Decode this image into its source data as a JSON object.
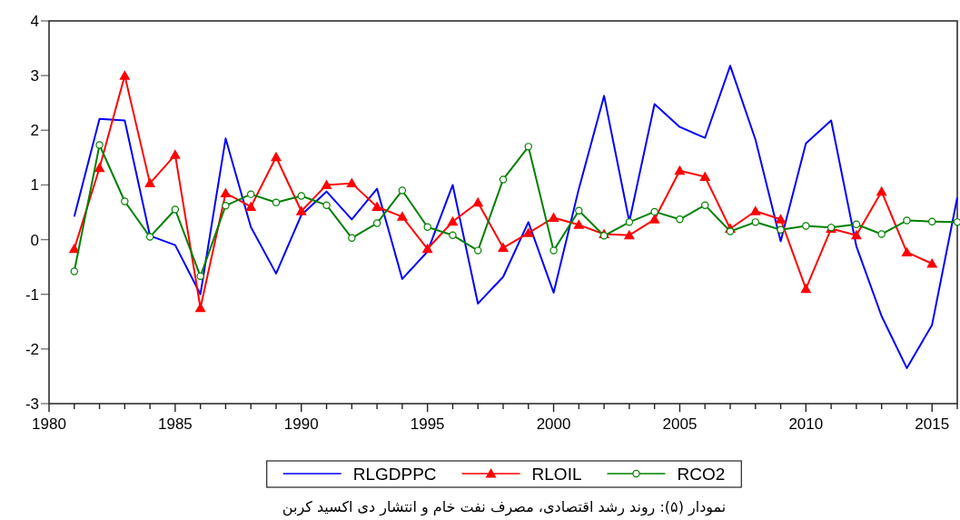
{
  "chart_data": {
    "type": "line",
    "x": [
      1981,
      1982,
      1983,
      1984,
      1985,
      1986,
      1987,
      1988,
      1989,
      1990,
      1991,
      1992,
      1993,
      1994,
      1995,
      1996,
      1997,
      1998,
      1999,
      2000,
      2001,
      2002,
      2003,
      2004,
      2005,
      2006,
      2007,
      2008,
      2009,
      2010,
      2011,
      2012,
      2013,
      2014,
      2015,
      2016
    ],
    "series": [
      {
        "name": "RLGDPPC",
        "color": "#0000ff",
        "marker": "none",
        "values": [
          0.42,
          2.21,
          2.18,
          0.07,
          -0.1,
          -1.0,
          1.85,
          0.23,
          -0.62,
          0.45,
          0.88,
          0.37,
          0.93,
          -0.72,
          -0.22,
          1.0,
          -1.17,
          -0.68,
          0.32,
          -0.97,
          0.93,
          2.63,
          0.33,
          2.48,
          2.06,
          1.86,
          3.18,
          1.83,
          -0.03,
          1.76,
          2.18,
          -0.12,
          -1.4,
          -2.35,
          -1.56,
          0.77
        ]
      },
      {
        "name": "RLOIL",
        "color": "#ff0000",
        "marker": "triangle",
        "values": [
          -0.17,
          1.31,
          3.0,
          1.03,
          1.55,
          -1.25,
          0.85,
          0.6,
          1.51,
          0.52,
          1.0,
          1.03,
          0.6,
          0.42,
          -0.17,
          0.33,
          0.68,
          -0.15,
          0.12,
          0.4,
          0.27,
          0.1,
          0.08,
          0.37,
          1.26,
          1.15,
          0.2,
          0.52,
          0.37,
          -0.9,
          0.2,
          0.08,
          0.88,
          -0.23,
          -0.44,
          null
        ]
      },
      {
        "name": "RCO2",
        "color": "#008000",
        "marker": "circle",
        "values": [
          -0.58,
          1.73,
          0.7,
          0.05,
          0.55,
          -0.67,
          0.62,
          0.83,
          0.68,
          0.8,
          0.63,
          0.03,
          0.3,
          0.9,
          0.23,
          0.08,
          -0.2,
          1.1,
          1.7,
          -0.2,
          0.53,
          0.07,
          0.32,
          0.51,
          0.37,
          0.63,
          0.15,
          0.32,
          0.18,
          0.25,
          0.22,
          0.28,
          0.1,
          0.35,
          0.33,
          0.32
        ]
      }
    ],
    "xlim": [
      1980,
      2016
    ],
    "ylim": [
      -3,
      4
    ],
    "xticks": [
      1980,
      {
        "value": 1981,
        "label": null
      },
      {
        "value": 1982,
        "label": null
      },
      {
        "value": 1983,
        "label": null
      },
      {
        "value": 1984,
        "label": null
      },
      1985,
      {
        "value": 1986,
        "label": null
      },
      {
        "value": 1987,
        "label": null
      },
      {
        "value": 1988,
        "label": null
      },
      {
        "value": 1989,
        "label": null
      },
      1990,
      {
        "value": 1991,
        "label": null
      },
      {
        "value": 1992,
        "label": null
      },
      {
        "value": 1993,
        "label": null
      },
      {
        "value": 1994,
        "label": null
      },
      1995,
      {
        "value": 1996,
        "label": null
      },
      {
        "value": 1997,
        "label": null
      },
      {
        "value": 1998,
        "label": null
      },
      {
        "value": 1999,
        "label": null
      },
      2000,
      {
        "value": 2001,
        "label": null
      },
      {
        "value": 2002,
        "label": null
      },
      {
        "value": 2003,
        "label": null
      },
      {
        "value": 2004,
        "label": null
      },
      2005,
      {
        "value": 2006,
        "label": null
      },
      {
        "value": 2007,
        "label": null
      },
      {
        "value": 2008,
        "label": null
      },
      {
        "value": 2009,
        "label": null
      },
      2010,
      {
        "value": 2011,
        "label": null
      },
      {
        "value": 2012,
        "label": null
      },
      {
        "value": 2013,
        "label": null
      },
      {
        "value": 2014,
        "label": null
      },
      2015,
      {
        "value": 2016,
        "label": null
      }
    ],
    "yticks": [
      -3,
      -2,
      -1,
      0,
      1,
      2,
      3,
      4
    ],
    "grid": false,
    "legend": "bottom",
    "annotations": [
      "نمودار (۵): روند رشد اقتصادی، مصرف نفت خام و انتشار دی اکسید کربن"
    ]
  }
}
